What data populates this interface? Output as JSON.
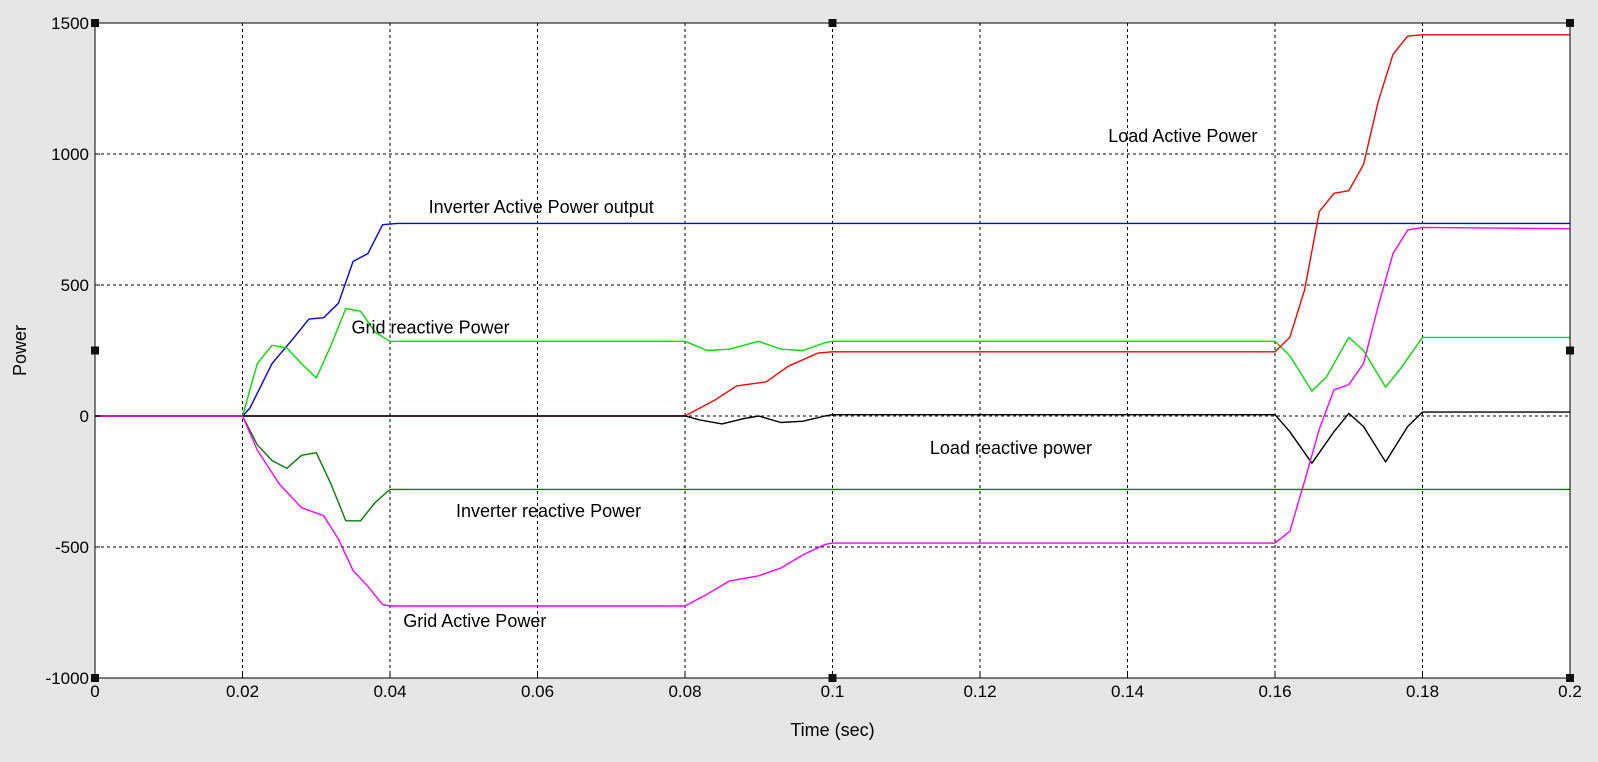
{
  "chart_data": {
    "type": "line",
    "xlabel": "Time (sec)",
    "ylabel": "Power",
    "xlim": [
      0,
      0.2
    ],
    "ylim": [
      -1000,
      1500
    ],
    "xticks": [
      0,
      0.02,
      0.04,
      0.06,
      0.08,
      0.1,
      0.12,
      0.14,
      0.16,
      0.18,
      0.2
    ],
    "xtick_labels": [
      "0",
      "0.02",
      "0.04",
      "0.06",
      "0.08",
      "0.1",
      "0.12",
      "0.14",
      "0.16",
      "0.18",
      "0.2"
    ],
    "yticks": [
      -1000,
      -500,
      0,
      500,
      1000,
      1500
    ],
    "ytick_labels": [
      "-1000",
      "-500",
      "0",
      "500",
      "1000",
      "1500"
    ],
    "grid": true,
    "zero_line": true,
    "colors": {
      "figure_background": "#e6e6e6",
      "axes_background": "#ffffff",
      "grid": "#000000"
    },
    "series": [
      {
        "color": "#0000ff",
        "x": [
          0,
          0.02,
          0.021,
          0.024,
          0.027,
          0.029,
          0.031,
          0.033,
          0.035,
          0.037,
          0.039,
          0.041,
          0.06,
          0.08,
          0.1,
          0.12,
          0.14,
          0.16,
          0.18,
          0.2
        ],
        "y": [
          0,
          0,
          30,
          200,
          300,
          370,
          375,
          430,
          590,
          620,
          730,
          735,
          735,
          735,
          735,
          735,
          735,
          735,
          735,
          735
        ]
      },
      {
        "color": "#00e000",
        "x": [
          0,
          0.02,
          0.022,
          0.024,
          0.026,
          0.028,
          0.03,
          0.032,
          0.034,
          0.036,
          0.038,
          0.04,
          0.06,
          0.08,
          0.083,
          0.086,
          0.09,
          0.093,
          0.096,
          0.099,
          0.1,
          0.12,
          0.14,
          0.16,
          0.162,
          0.165,
          0.167,
          0.17,
          0.172,
          0.175,
          0.177,
          0.18,
          0.2
        ],
        "y": [
          0,
          0,
          200,
          270,
          260,
          200,
          145,
          270,
          410,
          400,
          320,
          285,
          285,
          285,
          250,
          255,
          285,
          255,
          250,
          280,
          285,
          285,
          285,
          285,
          230,
          95,
          150,
          300,
          250,
          110,
          180,
          300,
          300
        ]
      },
      {
        "color": "#ff0000",
        "x": [
          0,
          0.08,
          0.084,
          0.087,
          0.091,
          0.094,
          0.098,
          0.1,
          0.12,
          0.14,
          0.16,
          0.162,
          0.164,
          0.166,
          0.168,
          0.17,
          0.172,
          0.174,
          0.176,
          0.178,
          0.18,
          0.2
        ],
        "y": [
          0,
          0,
          60,
          115,
          130,
          190,
          240,
          245,
          245,
          245,
          245,
          300,
          480,
          780,
          850,
          860,
          960,
          1200,
          1380,
          1450,
          1455,
          1455
        ]
      },
      {
        "color": "#000000",
        "x": [
          0,
          0.08,
          0.082,
          0.085,
          0.088,
          0.09,
          0.093,
          0.096,
          0.099,
          0.1,
          0.12,
          0.14,
          0.16,
          0.162,
          0.165,
          0.168,
          0.17,
          0.172,
          0.175,
          0.178,
          0.18,
          0.2
        ],
        "y": [
          0,
          0,
          -15,
          -30,
          -10,
          0,
          -25,
          -20,
          0,
          5,
          5,
          5,
          5,
          -60,
          -180,
          -60,
          10,
          -40,
          -175,
          -40,
          15,
          15
        ]
      },
      {
        "color": "#008000",
        "x": [
          0,
          0.02,
          0.022,
          0.024,
          0.026,
          0.028,
          0.03,
          0.032,
          0.034,
          0.036,
          0.038,
          0.04,
          0.06,
          0.08,
          0.1,
          0.12,
          0.14,
          0.16,
          0.18,
          0.2
        ],
        "y": [
          0,
          0,
          -110,
          -170,
          -200,
          -150,
          -140,
          -260,
          -400,
          -400,
          -330,
          -280,
          -280,
          -280,
          -280,
          -280,
          -280,
          -280,
          -280,
          -280
        ]
      },
      {
        "color": "#ff00ff",
        "x": [
          0,
          0.02,
          0.022,
          0.025,
          0.028,
          0.031,
          0.033,
          0.035,
          0.037,
          0.039,
          0.04,
          0.06,
          0.08,
          0.083,
          0.086,
          0.09,
          0.093,
          0.096,
          0.099,
          0.1,
          0.12,
          0.14,
          0.16,
          0.162,
          0.164,
          0.166,
          0.168,
          0.17,
          0.172,
          0.174,
          0.176,
          0.178,
          0.18,
          0.2
        ],
        "y": [
          0,
          0,
          -130,
          -260,
          -350,
          -380,
          -470,
          -590,
          -650,
          -720,
          -725,
          -725,
          -725,
          -680,
          -630,
          -610,
          -580,
          -530,
          -490,
          -485,
          -485,
          -485,
          -485,
          -440,
          -250,
          -50,
          100,
          120,
          200,
          420,
          620,
          710,
          720,
          715
        ]
      }
    ],
    "annotations": [
      {
        "text": "Load Active Power",
        "x": 0.1475,
        "y": 1045
      },
      {
        "text": "Inverter Active Power output",
        "x": 0.0605,
        "y": 775
      },
      {
        "text": "Grid reactive Power",
        "x": 0.0455,
        "y": 315
      },
      {
        "text": "Load reactive power",
        "x": 0.1242,
        "y": -145
      },
      {
        "text": "Inverter reactive Power",
        "x": 0.0615,
        "y": -385
      },
      {
        "text": "Grid Active Power",
        "x": 0.0515,
        "y": -805
      }
    ]
  }
}
